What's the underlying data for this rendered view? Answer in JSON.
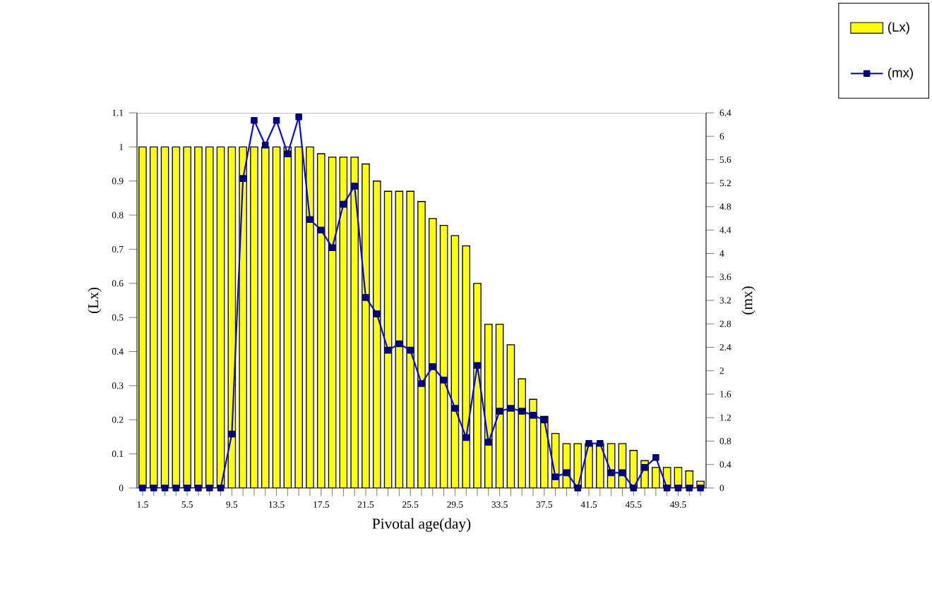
{
  "chart_data": {
    "type": "bar",
    "xlabel": "Pivotal age(day)",
    "ylabel": "(Lx)",
    "y2label": "(mx)",
    "categories": [
      "1.5",
      null,
      null,
      null,
      "5.5",
      null,
      null,
      null,
      "9.5",
      null,
      null,
      null,
      "13.5",
      null,
      null,
      null,
      "17.5",
      null,
      null,
      null,
      "21.5",
      null,
      null,
      null,
      "25.5",
      null,
      null,
      null,
      "29.5",
      null,
      null,
      null,
      "33.5",
      null,
      null,
      null,
      "37.5",
      null,
      null,
      null,
      "41.5",
      null,
      null,
      null,
      "45.5",
      null,
      null,
      null,
      "49.5",
      null,
      null
    ],
    "series": [
      {
        "name": "(Lx)",
        "color": "#ffff00",
        "values": [
          1,
          1,
          1,
          1,
          1,
          1,
          1,
          1,
          1,
          1,
          1,
          1,
          1,
          1,
          1,
          1,
          0.98,
          0.97,
          0.97,
          0.97,
          0.95,
          0.9,
          0.87,
          0.87,
          0.87,
          0.84,
          0.79,
          0.77,
          0.74,
          0.71,
          0.6,
          0.48,
          0.48,
          0.42,
          0.32,
          0.26,
          0.21,
          0.16,
          0.13,
          0.13,
          0.13,
          0.13,
          0.13,
          0.13,
          0.11,
          0.08,
          0.06,
          0.06,
          0.06,
          0.05,
          0.02
        ]
      },
      {
        "name": "(mx)",
        "type": "line",
        "axis": "y2",
        "color": "#0000ff",
        "values": [
          0,
          0,
          0,
          0,
          0,
          0,
          0,
          0,
          0.92,
          5.28,
          6.27,
          5.85,
          6.27,
          5.7,
          6.33,
          4.58,
          4.4,
          4.1,
          4.84,
          5.15,
          3.25,
          2.97,
          2.35,
          2.46,
          2.35,
          1.78,
          2.07,
          1.84,
          1.36,
          0.86,
          2.09,
          0.78,
          1.31,
          1.36,
          1.31,
          1.24,
          1.16,
          0.19,
          0.26,
          0,
          0.76,
          0.76,
          0.26,
          0.26,
          0,
          0.35,
          0.52,
          0,
          0,
          0,
          0
        ]
      }
    ],
    "ylim": [
      0,
      1.1
    ],
    "yticks": [
      0,
      0.1,
      0.2,
      0.3,
      0.4,
      0.5,
      0.6,
      0.7,
      0.8,
      0.9,
      1,
      1.1
    ],
    "y2lim": [
      0,
      6.4
    ],
    "y2ticks": [
      0,
      0.4,
      0.8,
      1.2,
      1.6,
      2,
      2.4,
      2.8,
      3.2,
      3.6,
      4,
      4.4,
      4.8,
      5.2,
      5.6,
      6,
      6.4
    ],
    "marker": "square",
    "legend": "top right",
    "grid": false
  }
}
